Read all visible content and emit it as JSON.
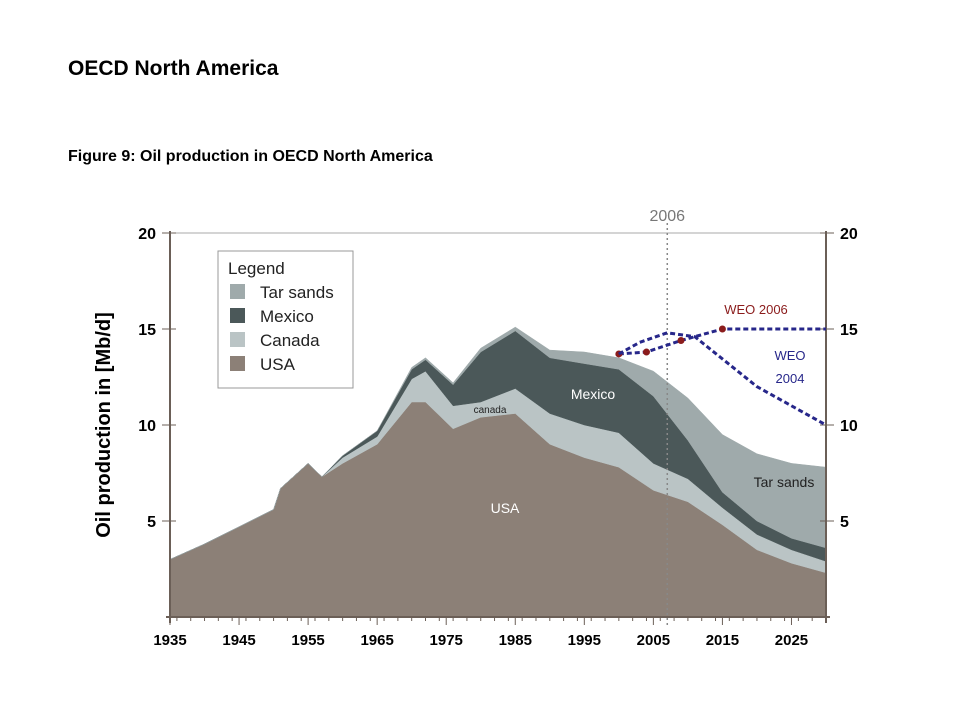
{
  "page": {
    "heading": "OECD North America",
    "figure_caption": "Figure 9: Oil production in OECD North America"
  },
  "chart_data": {
    "type": "area",
    "stacked": true,
    "title": "Figure 9: Oil production in OECD North America",
    "ylabel": "Oil production in [Mb/d]",
    "xlabel": "",
    "xlim": [
      1935,
      2030
    ],
    "ylim": [
      0,
      20
    ],
    "xticks": [
      "1935",
      "1945",
      "1955",
      "1965",
      "1975",
      "1985",
      "1995",
      "2005",
      "2015",
      "2025"
    ],
    "yticks": [
      "5",
      "10",
      "15",
      "20"
    ],
    "legend": {
      "title": "Legend",
      "placement": "top-left",
      "entries": [
        "Tar sands",
        "Mexico",
        "Canada",
        "USA"
      ]
    },
    "x": [
      1935,
      1940,
      1945,
      1950,
      1951,
      1955,
      1957,
      1960,
      1965,
      1970,
      1972,
      1976,
      1980,
      1985,
      1990,
      1995,
      2000,
      2005,
      2010,
      2015,
      2020,
      2025,
      2030
    ],
    "series": [
      {
        "name": "USA",
        "color": "#8c8077",
        "values": [
          3.0,
          3.8,
          4.7,
          5.6,
          6.7,
          8.0,
          7.3,
          8.0,
          9.0,
          11.2,
          11.2,
          9.8,
          10.4,
          10.6,
          9.0,
          8.3,
          7.8,
          6.6,
          6.0,
          4.8,
          3.5,
          2.8,
          2.3
        ]
      },
      {
        "name": "Canada",
        "color": "#bac4c5",
        "values": [
          0,
          0,
          0,
          0,
          0,
          0,
          0,
          0.3,
          0.4,
          1.2,
          1.6,
          1.2,
          0.8,
          1.3,
          1.6,
          1.7,
          1.8,
          1.4,
          1.2,
          0.9,
          0.8,
          0.7,
          0.6
        ]
      },
      {
        "name": "Mexico",
        "color": "#4b5859",
        "values": [
          0,
          0,
          0,
          0,
          0,
          0,
          0,
          0.1,
          0.3,
          0.5,
          0.6,
          1.1,
          2.6,
          3.0,
          2.9,
          3.2,
          3.3,
          3.5,
          2.0,
          0.8,
          0.7,
          0.6,
          0.7
        ]
      },
      {
        "name": "Tar sands",
        "color": "#9faaab",
        "values": [
          0,
          0,
          0,
          0,
          0,
          0,
          0,
          0,
          0,
          0.1,
          0.1,
          0.1,
          0.2,
          0.2,
          0.4,
          0.6,
          0.6,
          1.3,
          2.2,
          3.0,
          3.5,
          3.9,
          4.2
        ]
      }
    ],
    "projections": [
      {
        "name": "WEO 2006",
        "color": "#8b1c1c",
        "x": [
          2000,
          2004,
          2009,
          2015,
          2030
        ],
        "values": [
          13.7,
          13.8,
          14.4,
          15.0,
          15.0
        ],
        "markers": [
          2000,
          2004,
          2009,
          2015
        ]
      },
      {
        "name": "WEO 2004",
        "color": "#27278a",
        "x": [
          2000,
          2003,
          2007,
          2011,
          2020,
          2030
        ],
        "values": [
          13.7,
          14.3,
          14.8,
          14.6,
          12.0,
          10.0
        ],
        "markers": []
      }
    ],
    "reference_line": {
      "x": 2006,
      "label": "2006"
    },
    "annotations": {
      "usa": "USA",
      "canada": "canada",
      "mexico": "Mexico",
      "tar_sands": "Tar sands",
      "weo2006": "WEO 2006",
      "weo2004_line1": "WEO",
      "weo2004_line2": "2004"
    }
  }
}
